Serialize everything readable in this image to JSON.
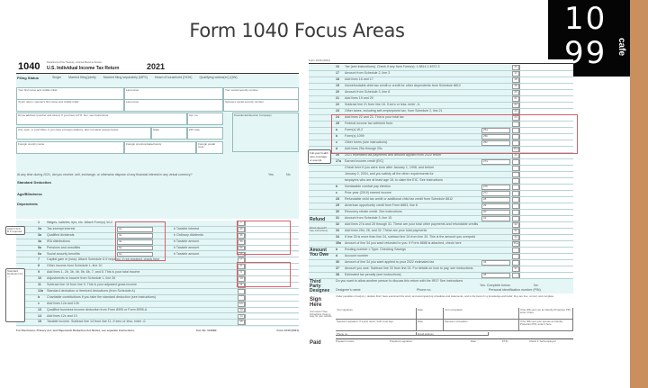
{
  "slide": {
    "title": "Form 1040 Focus Areas",
    "logo": {
      "top": "10",
      "bottom": "99",
      "word": "cafe"
    },
    "accent": "#c98f5c",
    "highlight": "#d9606a"
  },
  "left_page": {
    "form_number": "1040",
    "agency": "Department of the Treasury—Internal Revenue Service",
    "form_title": "U.S. Individual Income Tax Return",
    "year": "2021",
    "filing_status": {
      "label": "Filing Status",
      "options": [
        "Single",
        "Married filing jointly",
        "Married filing separately (MFS)",
        "Head of household (HOH)",
        "Qualifying widow(er) (QW)"
      ]
    },
    "fields": [
      "Your first name and middle initial",
      "Last name",
      "Your social security number",
      "If joint return, spouse's first name and middle initial",
      "Last name",
      "Spouse's social security number",
      "Home address (number and street). If you have a P.O. box, see instructions.",
      "Apt. no.",
      "Presidential Election Campaign",
      "City, town, or post office. If you have a foreign address, also complete spaces below.",
      "State",
      "ZIP code",
      "Foreign country name",
      "Foreign province/state/county",
      "Foreign postal code"
    ],
    "virtual_currency": "At any time during 2021, did you receive, sell, exchange, or otherwise dispose of any financial interest in any virtual currency?",
    "yes": "Yes",
    "no": "No",
    "standard_deduction": "Standard Deduction",
    "age_blindness": "Age/Blindness",
    "dependents": "Dependents",
    "attach_note": "Attach Sch. B if required.",
    "std_note": "Standard Deduction for—",
    "lines": [
      {
        "num": "1",
        "label": "Wages, salaries, tips, etc. Attach Form(s) W-2",
        "box": "1"
      },
      {
        "num": "2a",
        "label": "Tax-exempt interest",
        "sub": "2a",
        "right": "b Taxable interest",
        "box": "2b"
      },
      {
        "num": "3a",
        "label": "Qualified dividends",
        "sub": "3a",
        "right": "b Ordinary dividends",
        "box": "3b"
      },
      {
        "num": "4a",
        "label": "IRA distributions",
        "sub": "4a",
        "right": "b Taxable amount",
        "box": "4b"
      },
      {
        "num": "5a",
        "label": "Pensions and annuities",
        "sub": "5a",
        "right": "b Taxable amount",
        "box": "5b"
      },
      {
        "num": "6a",
        "label": "Social security benefits",
        "sub": "6a",
        "right": "b Taxable amount",
        "box": "6b"
      },
      {
        "num": "7",
        "label": "Capital gain or (loss). Attach Schedule D if required. If not required, check here",
        "box": "7"
      },
      {
        "num": "8",
        "label": "Other income from Schedule 1, line 10",
        "box": "8"
      },
      {
        "num": "9",
        "label": "Add lines 1, 2b, 3b, 4b, 5b, 6b, 7, and 8. This is your total income",
        "box": "9"
      },
      {
        "num": "10",
        "label": "Adjustments to income from Schedule 1, line 26",
        "box": "10"
      },
      {
        "num": "11",
        "label": "Subtract line 10 from line 9. This is your adjusted gross income",
        "box": "11"
      },
      {
        "num": "12a",
        "label": "Standard deduction or itemized deductions (from Schedule A)",
        "box": ""
      },
      {
        "num": "b",
        "label": "Charitable contributions if you take the standard deduction (see instructions)",
        "box": ""
      },
      {
        "num": "c",
        "label": "Add lines 12a and 12b",
        "box": "12c"
      },
      {
        "num": "13",
        "label": "Qualified business income deduction from Form 8995 or Form 8995-A",
        "box": "13"
      },
      {
        "num": "14",
        "label": "Add lines 12c and 13",
        "box": "14"
      },
      {
        "num": "15",
        "label": "Taxable income. Subtract line 14 from line 11. If zero or less, enter -0-",
        "box": "15"
      }
    ],
    "footer": "For Disclosure, Privacy Act, and Paperwork Reduction Act Notice, see separate instructions.",
    "cat": "Cat. No. 11320B",
    "footer_form": "Form 1040 (2021)"
  },
  "right_page": {
    "header": "Form 1040 (2021)",
    "lines": [
      {
        "num": "16",
        "label": "Tax (see instructions). Check if any from Form(s): 1 8814 2 4972 3",
        "box": "16"
      },
      {
        "num": "17",
        "label": "Amount from Schedule 2, line 3",
        "box": "17"
      },
      {
        "num": "18",
        "label": "Add lines 16 and 17",
        "box": "18"
      },
      {
        "num": "19",
        "label": "Nonrefundable child tax credit or credit for other dependents from Schedule 8812",
        "box": "19"
      },
      {
        "num": "20",
        "label": "Amount from Schedule 3, line 8",
        "box": "20"
      },
      {
        "num": "21",
        "label": "Add lines 19 and 20",
        "box": "21"
      },
      {
        "num": "22",
        "label": "Subtract line 21 from line 18. If zero or less, enter -0-",
        "box": "22"
      },
      {
        "num": "23",
        "label": "Other taxes, including self-employment tax, from Schedule 2, line 21",
        "box": "23"
      },
      {
        "num": "24",
        "label": "Add lines 22 and 23. This is your total tax",
        "box": "24"
      },
      {
        "num": "25",
        "label": "Federal income tax withheld from:",
        "box": ""
      },
      {
        "num": "a",
        "label": "Form(s) W-2",
        "sub": "25a",
        "box": ""
      },
      {
        "num": "b",
        "label": "Form(s) 1099",
        "sub": "25b",
        "box": ""
      },
      {
        "num": "c",
        "label": "Other forms (see instructions)",
        "sub": "25c",
        "box": ""
      },
      {
        "num": "d",
        "label": "Add lines 25a through 25c",
        "box": "25d"
      },
      {
        "num": "26",
        "label": "2021 estimated tax payments and amount applied from 2020 return",
        "box": "26"
      },
      {
        "num": "27a",
        "label": "Earned income credit (EIC)",
        "sub": "27a",
        "box": ""
      },
      {
        "num": "",
        "label": "Check here if you were born after January 1, 1998, and before",
        "box": ""
      },
      {
        "num": "",
        "label": "January 2, 2004, and you satisfy all the other requirements for",
        "box": ""
      },
      {
        "num": "",
        "label": "taxpayers who are at least age 18, to claim the EIC. See instructions",
        "box": ""
      },
      {
        "num": "b",
        "label": "Nontaxable combat pay election",
        "sub": "27b",
        "box": ""
      },
      {
        "num": "c",
        "label": "Prior year (2019) earned income",
        "sub": "27c",
        "box": ""
      },
      {
        "num": "28",
        "label": "Refundable child tax credit or additional child tax credit from Schedule 8812",
        "sub": "28",
        "box": ""
      },
      {
        "num": "29",
        "label": "American opportunity credit from Form 8863, line 8",
        "sub": "29",
        "box": ""
      },
      {
        "num": "30",
        "label": "Recovery rebate credit. See instructions",
        "sub": "30",
        "box": ""
      },
      {
        "num": "31",
        "label": "Amount from Schedule 3, line 15",
        "sub": "31",
        "box": ""
      },
      {
        "num": "32",
        "label": "Add lines 27a and 28 through 31. These are your total other payments and refundable credits",
        "box": "32"
      },
      {
        "num": "33",
        "label": "Add lines 25d, 26, and 32. These are your total payments",
        "box": "33"
      },
      {
        "num": "34",
        "label": "If line 33 is more than line 24, subtract line 24 from line 33. This is the amount you overpaid",
        "box": "34"
      },
      {
        "num": "35a",
        "label": "Amount of line 34 you want refunded to you. If Form 8888 is attached, check here",
        "box": "35a"
      },
      {
        "num": "b",
        "label": "Routing number                     c Type: Checking  Savings",
        "box": ""
      },
      {
        "num": "d",
        "label": "Account number",
        "box": ""
      },
      {
        "num": "36",
        "label": "Amount of line 34 you want applied to your 2022 estimated tax",
        "sub": "36",
        "box": ""
      },
      {
        "num": "37",
        "label": "Amount you owe. Subtract line 33 from line 24. For details on how to pay, see instructions",
        "box": "37"
      },
      {
        "num": "38",
        "label": "Estimated tax penalty (see instructions)",
        "sub": "38",
        "box": ""
      }
    ],
    "callout": "Full-year health care coverage or exempt",
    "sections": {
      "refund": "Refund",
      "direct_deposit": "Direct deposit? See instructions.",
      "owe": "Amount You Owe",
      "third_party": "Third Party Designee",
      "sign": "Sign Here",
      "paid": "Paid"
    },
    "third_party_text": "Do you want to allow another person to discuss this return with the IRS? See instructions",
    "designee_fields": [
      "Designee's name",
      "Phone no.",
      "Personal identification number (PIN)"
    ],
    "yes_complete": "Yes. Complete below.",
    "no": "No",
    "perjury": "Under penalties of perjury, I declare that I have examined this return and accompanying schedules and statements, and to the best of my knowledge and belief, they are true, correct, and complete.",
    "sign_fields": [
      "Your signature",
      "Date",
      "Your occupation",
      "If the IRS sent you an Identity Protection PIN, enter it here",
      "Spouse's signature. If a joint return, both must sign.",
      "Date",
      "Spouse's occupation",
      "If the IRS sent your spouse an Identity Protection PIN, enter it here",
      "Phone no.",
      "Email address"
    ],
    "joint_note": "Joint return? See instructions. Keep a copy for your records.",
    "paid_fields": [
      "Preparer's name",
      "Preparer's signature",
      "Date",
      "PTIN",
      "Check if: Self-employed"
    ]
  }
}
